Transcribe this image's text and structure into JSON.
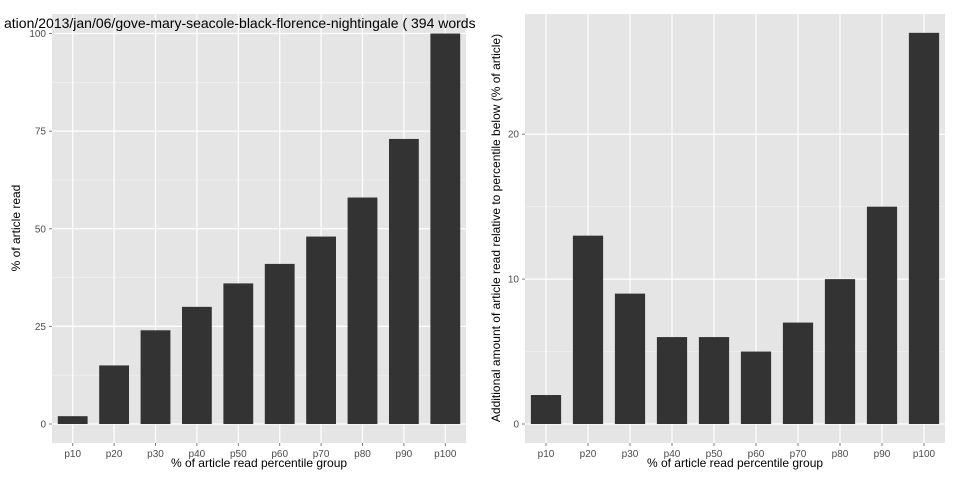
{
  "chart_data": [
    {
      "type": "bar",
      "title": "ation/2013/jan/06/gove-mary-seacole-black-florence-nightingale ( 394 words",
      "xlabel": "% of article read percentile group",
      "ylabel": "% of article read",
      "categories": [
        "p10",
        "p20",
        "p30",
        "p40",
        "p50",
        "p60",
        "p70",
        "p80",
        "p90",
        "p100"
      ],
      "values": [
        2,
        15,
        24,
        30,
        36,
        41,
        48,
        58,
        73,
        100
      ],
      "ylim": [
        0,
        105
      ],
      "yticks": [
        0,
        25,
        50,
        75,
        100
      ],
      "ytick_labels": [
        "0",
        "25",
        "50",
        "75",
        "100"
      ],
      "grid": true,
      "panel_background": "#e5e5e5",
      "grid_color": "#ffffff",
      "bar_color": "#333333"
    },
    {
      "type": "bar",
      "title": "",
      "xlabel": "% of article read percentile group",
      "ylabel": "Additional amount of article read relative to percentile below (% of article)",
      "categories": [
        "p10",
        "p20",
        "p30",
        "p40",
        "p50",
        "p60",
        "p70",
        "p80",
        "p90",
        "p100"
      ],
      "values": [
        2,
        13,
        9,
        6,
        6,
        5,
        7,
        10,
        15,
        27
      ],
      "ylim": [
        0,
        28.3
      ],
      "yticks": [
        0,
        10,
        20
      ],
      "ytick_labels": [
        "0",
        "10",
        "20"
      ],
      "grid": true,
      "panel_background": "#e5e5e5",
      "grid_color": "#ffffff",
      "bar_color": "#333333"
    }
  ]
}
